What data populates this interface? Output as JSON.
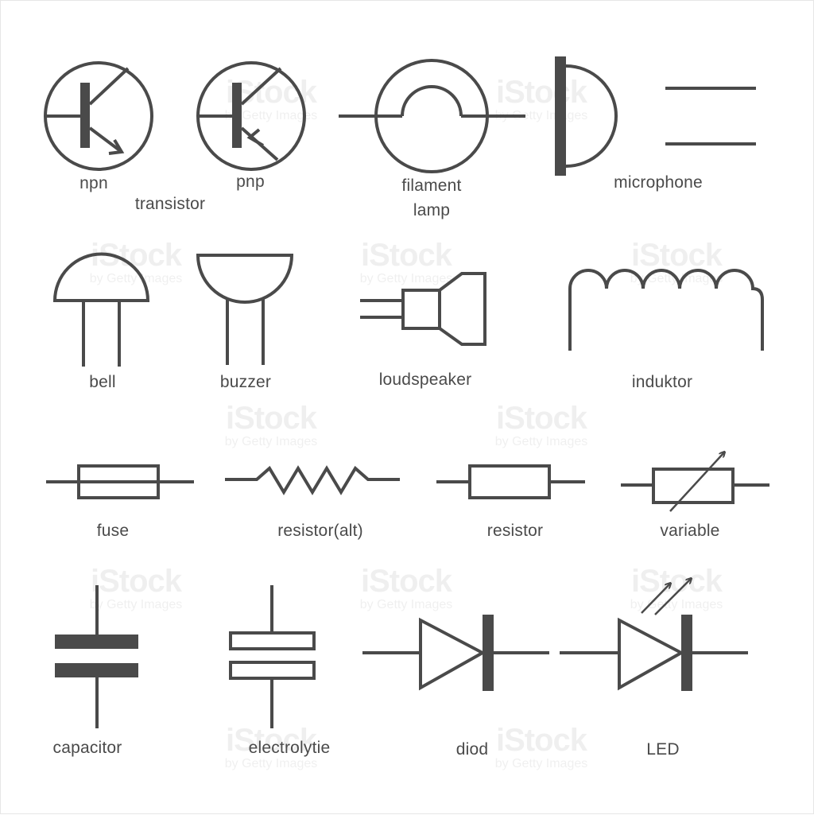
{
  "colors": {
    "stroke": "#4a4a4a",
    "background": "#ffffff"
  },
  "labels": {
    "npn": "npn",
    "transistor": "transistor",
    "pnp": "pnp",
    "filament_lamp_line1": "filament",
    "filament_lamp_line2": "lamp",
    "microphone": "microphone",
    "bell": "bell",
    "buzzer": "buzzer",
    "loudspeaker": "loudspeaker",
    "induktor": "induktor",
    "fuse": "fuse",
    "resistor_alt": "resistor(alt)",
    "resistor": "resistor",
    "variable": "variable",
    "capacitor": "capacitor",
    "electrolytie": "electrolytie",
    "diod": "diod",
    "led": "LED"
  },
  "watermark": {
    "brand": "iStock",
    "sub": "by Getty Images"
  }
}
